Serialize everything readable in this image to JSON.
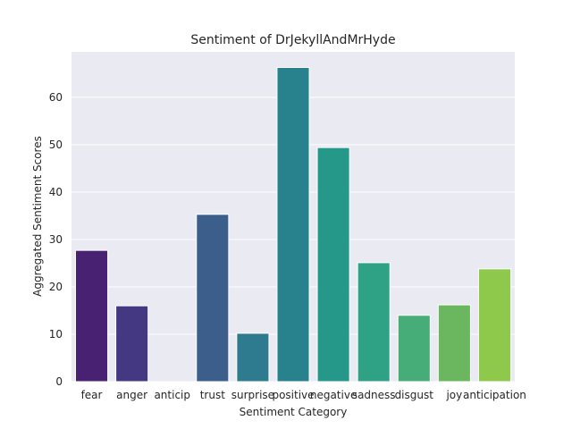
{
  "chart_data": {
    "type": "bar",
    "title": "Sentiment of DrJekyllAndMrHyde",
    "xlabel": "Sentiment Category",
    "ylabel": "Aggregated Sentiment Scores",
    "categories": [
      "fear",
      "anger",
      "anticip",
      "trust",
      "surprise",
      "positive",
      "negative",
      "sadness",
      "disgust",
      "joy",
      "anticipation"
    ],
    "values": [
      27.7,
      16.0,
      0,
      35.3,
      10.2,
      66.3,
      49.4,
      25.1,
      14.0,
      16.2,
      23.8
    ],
    "ylim": [
      0,
      69.6
    ],
    "yticks": [
      0,
      10,
      20,
      30,
      40,
      50,
      60
    ],
    "grid": true,
    "colors": [
      "#482173",
      "#453882",
      "#3e4c8a",
      "#3b5e8b",
      "#2e7a8e",
      "#28828e",
      "#26988a",
      "#2fa286",
      "#46ad78",
      "#6ab75f",
      "#8ec94b",
      "#b5d52a"
    ],
    "plot_background": "#eaeaf2"
  }
}
